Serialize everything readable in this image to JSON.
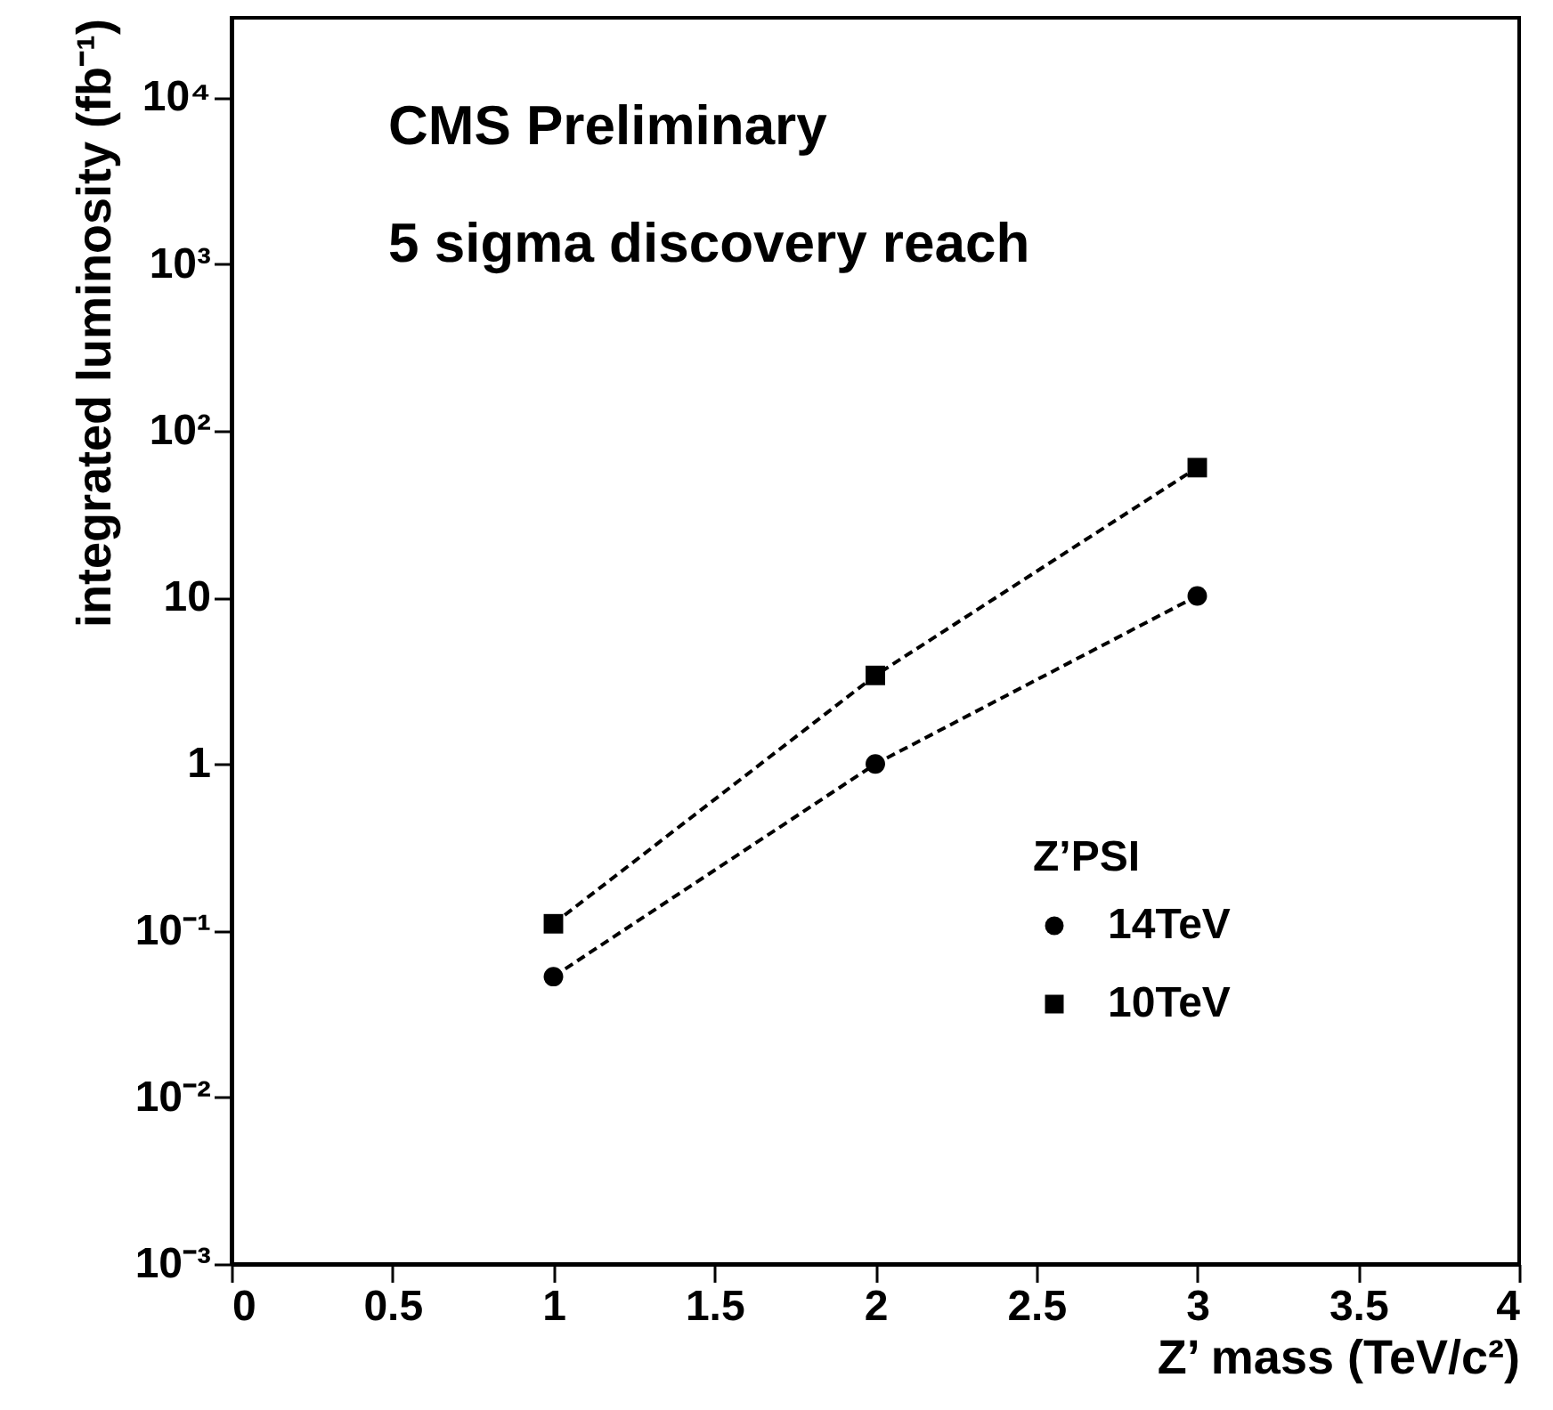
{
  "chart_data": {
    "type": "line",
    "annotations": [
      "CMS Preliminary",
      "5 sigma discovery reach"
    ],
    "xlabel": "Z’ mass (TeV/c²)",
    "ylabel": "integrated luminosity (fb⁻¹)",
    "legend_title": "Z’PSI",
    "x": [
      1,
      2,
      3
    ],
    "series": [
      {
        "name": "14TeV",
        "color": "#000000",
        "marker": "circle",
        "values": [
          0.053,
          1.0,
          10.2
        ]
      },
      {
        "name": "10TeV",
        "color": "#000000",
        "marker": "square",
        "values": [
          0.11,
          3.4,
          60
        ]
      }
    ],
    "xlim": [
      0,
      4
    ],
    "xticks": [
      0,
      0.5,
      1,
      1.5,
      2,
      2.5,
      3,
      3.5,
      4
    ],
    "ylim": [
      0.001,
      30000
    ],
    "yticks": [
      {
        "value": 0.001,
        "label": "10⁻³"
      },
      {
        "value": 0.01,
        "label": "10⁻²"
      },
      {
        "value": 0.1,
        "label": "10⁻¹"
      },
      {
        "value": 1,
        "label": "1"
      },
      {
        "value": 10,
        "label": "10"
      },
      {
        "value": 100,
        "label": "10²"
      },
      {
        "value": 1000,
        "label": "10³"
      },
      {
        "value": 10000,
        "label": "10⁴"
      }
    ],
    "log": "y",
    "grid": false,
    "legend": "bottom right",
    "line_style": "dashed"
  }
}
